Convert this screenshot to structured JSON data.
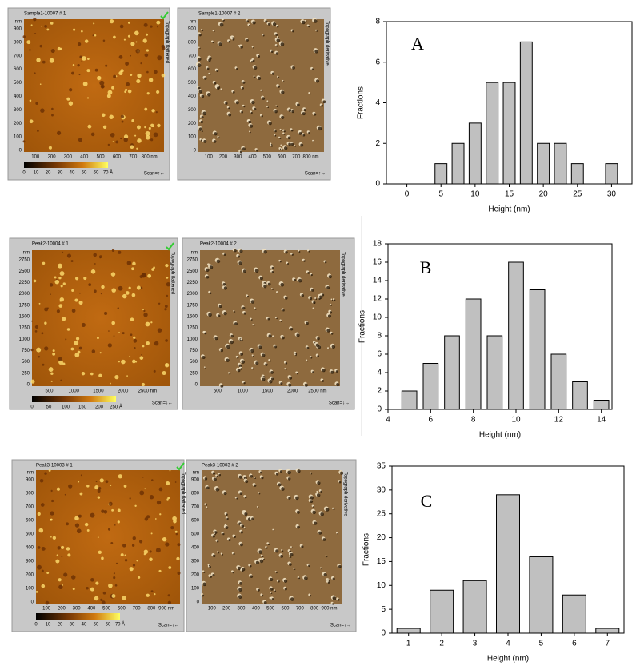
{
  "chart_data": [
    {
      "type": "bar",
      "annotation": "A",
      "x_label": "Height (nm)",
      "y_label": "Fractions",
      "color": "#c0c0c0",
      "x": [
        5,
        7.5,
        10,
        12.5,
        15,
        17.5,
        20,
        22.5,
        25,
        30
      ],
      "values": [
        1,
        2,
        3,
        5,
        5,
        7,
        2,
        2,
        1,
        1
      ],
      "xlim": [
        -3,
        33
      ],
      "xticks": [
        0,
        5,
        10,
        15,
        20,
        25,
        30
      ],
      "ylim": [
        0,
        8
      ],
      "yticks": [
        0,
        2,
        4,
        6,
        8
      ]
    },
    {
      "type": "bar",
      "annotation": "B",
      "x_label": "Height (nm)",
      "y_label": "Fractions",
      "color": "#c0c0c0",
      "x": [
        5,
        6,
        7,
        8,
        9,
        10,
        11,
        12,
        13,
        14
      ],
      "values": [
        2,
        5,
        8,
        12,
        8,
        16,
        13,
        6,
        3,
        1
      ],
      "xlim": [
        4,
        14.5
      ],
      "xticks": [
        4,
        6,
        8,
        10,
        12,
        14
      ],
      "ylim": [
        0,
        18
      ],
      "yticks": [
        0,
        2,
        4,
        6,
        8,
        10,
        12,
        14,
        16,
        18
      ]
    },
    {
      "type": "bar",
      "annotation": "C",
      "x_label": "Height (nm)",
      "y_label": "Fractions",
      "color": "#c0c0c0",
      "x": [
        1,
        2,
        3,
        4,
        5,
        6,
        7
      ],
      "values": [
        1,
        9,
        11,
        29,
        16,
        8,
        1
      ],
      "xlim": [
        0.5,
        7.5
      ],
      "xticks": [
        1,
        2,
        3,
        4,
        5,
        6,
        7
      ],
      "ylim": [
        0,
        35
      ],
      "yticks": [
        0,
        5,
        10,
        15,
        20,
        25,
        30,
        35
      ]
    }
  ],
  "afm_panels": [
    {
      "title": "Sample1-10007 # 1",
      "side_label": "Topograph flattened",
      "y_unit": "nm",
      "y_ticks": [
        "900",
        "800",
        "700",
        "600",
        "500",
        "400",
        "300",
        "200",
        "100",
        "0"
      ],
      "x_ticks": [
        "100",
        "200",
        "300",
        "400",
        "500",
        "600",
        "700",
        "800 nm"
      ],
      "scan": "Scan=↑←",
      "scale_ticks": [
        "0",
        "10",
        "20",
        "30",
        "40",
        "50",
        "60",
        "70 Å"
      ]
    },
    {
      "title": "Sample1-10007 # 2",
      "side_label": "Topograph derivative",
      "y_unit": "nm",
      "y_ticks": [
        "900",
        "800",
        "700",
        "600",
        "500",
        "400",
        "300",
        "200",
        "100",
        "0"
      ],
      "x_ticks": [
        "100",
        "200",
        "300",
        "400",
        "500",
        "600",
        "700",
        "800 nm"
      ],
      "scan": "Scan=↑→"
    },
    {
      "title": "Peak2-10004 # 1",
      "side_label": "Topograph flattened",
      "y_unit": "nm",
      "y_ticks": [
        "2750",
        "2500",
        "2250",
        "2000",
        "1750",
        "1500",
        "1250",
        "1000",
        "750",
        "500",
        "250",
        "0"
      ],
      "x_ticks": [
        "500",
        "1000",
        "1500",
        "2000",
        "2500 nm"
      ],
      "scan": "Scan=↓←",
      "scale_ticks": [
        "0",
        "50",
        "100",
        "150",
        "200",
        "250 Å"
      ]
    },
    {
      "title": "Peak2-10004 # 2",
      "side_label": "Topograph derivative",
      "y_unit": "nm",
      "y_ticks": [
        "2750",
        "2500",
        "2250",
        "2000",
        "1750",
        "1500",
        "1250",
        "1000",
        "750",
        "500",
        "250",
        "0"
      ],
      "x_ticks": [
        "500",
        "1000",
        "1500",
        "2000",
        "2500 nm"
      ],
      "scan": "Scan=↓→"
    },
    {
      "title": "Peak3-10003 # 1",
      "side_label": "Topograph flattened",
      "y_unit": "nm",
      "y_ticks": [
        "900",
        "800",
        "700",
        "600",
        "500",
        "400",
        "300",
        "200",
        "100",
        "0"
      ],
      "x_ticks": [
        "100",
        "200",
        "300",
        "400",
        "500",
        "600",
        "700",
        "800",
        "900 nm"
      ],
      "scan": "Scan=↓←",
      "scale_ticks": [
        "0",
        "10",
        "20",
        "30",
        "40",
        "50",
        "60",
        "70 Å"
      ]
    },
    {
      "title": "Peak3-10003 # 2",
      "side_label": "Topograph derivative",
      "y_unit": "nm",
      "y_ticks": [
        "900",
        "800",
        "700",
        "600",
        "500",
        "400",
        "300",
        "200",
        "100",
        "0"
      ],
      "x_ticks": [
        "100",
        "200",
        "300",
        "400",
        "500",
        "600",
        "700",
        "800",
        "900 nm"
      ],
      "scan": "Scan=↓→"
    }
  ]
}
